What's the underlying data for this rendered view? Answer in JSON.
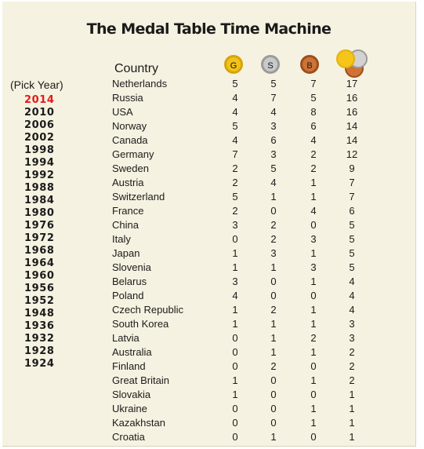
{
  "title": "The Medal Table Time Machine",
  "header": {
    "country_label": "Country",
    "gold_label": "G",
    "silver_label": "S",
    "bronze_label": "B",
    "total_icon": "medal-stack-icon"
  },
  "colors": {
    "background": "#f6f2e1",
    "selected_year": "#e21a1a",
    "gold": "#f2c21a",
    "silver": "#c9c9c9",
    "bronze": "#cf7335"
  },
  "year_picker": {
    "label": "(Pick Year)",
    "selected": "2014",
    "years": [
      "2014",
      "2010",
      "2006",
      "2002",
      "1998",
      "1994",
      "1992",
      "1988",
      "1984",
      "1980",
      "1976",
      "1972",
      "1968",
      "1964",
      "1960",
      "1956",
      "1952",
      "1948",
      "1936",
      "1932",
      "1928",
      "1924"
    ]
  },
  "rows": [
    {
      "country": "Netherlands",
      "gold": 5,
      "silver": 5,
      "bronze": 7,
      "total": 17
    },
    {
      "country": "Russia",
      "gold": 4,
      "silver": 7,
      "bronze": 5,
      "total": 16
    },
    {
      "country": "USA",
      "gold": 4,
      "silver": 4,
      "bronze": 8,
      "total": 16
    },
    {
      "country": "Norway",
      "gold": 5,
      "silver": 3,
      "bronze": 6,
      "total": 14
    },
    {
      "country": "Canada",
      "gold": 4,
      "silver": 6,
      "bronze": 4,
      "total": 14
    },
    {
      "country": "Germany",
      "gold": 7,
      "silver": 3,
      "bronze": 2,
      "total": 12
    },
    {
      "country": "Sweden",
      "gold": 2,
      "silver": 5,
      "bronze": 2,
      "total": 9
    },
    {
      "country": "Austria",
      "gold": 2,
      "silver": 4,
      "bronze": 1,
      "total": 7
    },
    {
      "country": "Switzerland",
      "gold": 5,
      "silver": 1,
      "bronze": 1,
      "total": 7
    },
    {
      "country": "France",
      "gold": 2,
      "silver": 0,
      "bronze": 4,
      "total": 6
    },
    {
      "country": "China",
      "gold": 3,
      "silver": 2,
      "bronze": 0,
      "total": 5
    },
    {
      "country": "Italy",
      "gold": 0,
      "silver": 2,
      "bronze": 3,
      "total": 5
    },
    {
      "country": "Japan",
      "gold": 1,
      "silver": 3,
      "bronze": 1,
      "total": 5
    },
    {
      "country": "Slovenia",
      "gold": 1,
      "silver": 1,
      "bronze": 3,
      "total": 5
    },
    {
      "country": "Belarus",
      "gold": 3,
      "silver": 0,
      "bronze": 1,
      "total": 4
    },
    {
      "country": "Poland",
      "gold": 4,
      "silver": 0,
      "bronze": 0,
      "total": 4
    },
    {
      "country": "Czech Republic",
      "gold": 1,
      "silver": 2,
      "bronze": 1,
      "total": 4
    },
    {
      "country": "South Korea",
      "gold": 1,
      "silver": 1,
      "bronze": 1,
      "total": 3
    },
    {
      "country": "Latvia",
      "gold": 0,
      "silver": 1,
      "bronze": 2,
      "total": 3
    },
    {
      "country": "Australia",
      "gold": 0,
      "silver": 1,
      "bronze": 1,
      "total": 2
    },
    {
      "country": "Finland",
      "gold": 0,
      "silver": 2,
      "bronze": 0,
      "total": 2
    },
    {
      "country": "Great Britain",
      "gold": 1,
      "silver": 0,
      "bronze": 1,
      "total": 2
    },
    {
      "country": "Slovakia",
      "gold": 1,
      "silver": 0,
      "bronze": 0,
      "total": 1
    },
    {
      "country": "Ukraine",
      "gold": 0,
      "silver": 0,
      "bronze": 1,
      "total": 1
    },
    {
      "country": "Kazakhstan",
      "gold": 0,
      "silver": 0,
      "bronze": 1,
      "total": 1
    },
    {
      "country": "Croatia",
      "gold": 0,
      "silver": 1,
      "bronze": 0,
      "total": 1
    }
  ]
}
